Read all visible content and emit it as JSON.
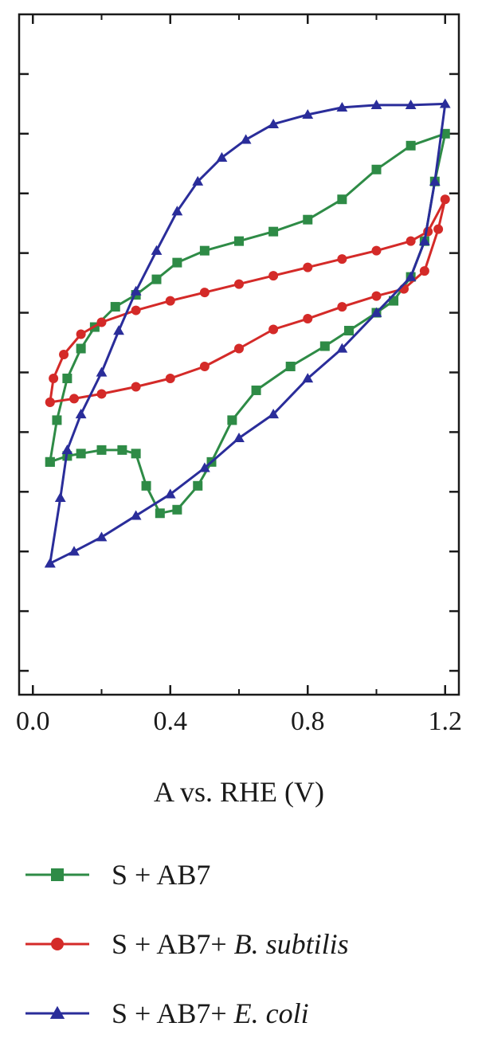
{
  "chart_data": {
    "type": "line",
    "title": "",
    "xlabel": "A vs. RHE (V)",
    "ylabel": "",
    "xlim": [
      -0.04,
      1.24
    ],
    "ylim": [
      -3.2,
      2.5
    ],
    "x_ticks": [
      0.0,
      0.4,
      0.8,
      1.2
    ],
    "x_tick_labels": [
      "0.0",
      "0.4",
      "0.8",
      "1.2"
    ],
    "y_ticks": [
      -3,
      -2.5,
      -2,
      -1.5,
      -1,
      -0.5,
      0,
      0.5,
      1,
      1.5,
      2
    ],
    "y_tick_labels_shown": false,
    "grid": false,
    "legend_position": "bottom",
    "series": [
      {
        "name": "S + AB7",
        "color": "#2e8b46",
        "marker": "square",
        "points": [
          [
            0.05,
            -1.25
          ],
          [
            0.07,
            -0.9
          ],
          [
            0.1,
            -0.55
          ],
          [
            0.14,
            -0.3
          ],
          [
            0.18,
            -0.12
          ],
          [
            0.24,
            0.05
          ],
          [
            0.3,
            0.15
          ],
          [
            0.36,
            0.28
          ],
          [
            0.42,
            0.42
          ],
          [
            0.5,
            0.52
          ],
          [
            0.6,
            0.6
          ],
          [
            0.7,
            0.68
          ],
          [
            0.8,
            0.78
          ],
          [
            0.9,
            0.95
          ],
          [
            1.0,
            1.2
          ],
          [
            1.1,
            1.4
          ],
          [
            1.2,
            1.5
          ],
          [
            1.17,
            1.1
          ],
          [
            1.14,
            0.6
          ],
          [
            1.1,
            0.3
          ],
          [
            1.05,
            0.1
          ],
          [
            1.0,
            0.0
          ],
          [
            0.92,
            -0.15
          ],
          [
            0.85,
            -0.28
          ],
          [
            0.75,
            -0.45
          ],
          [
            0.65,
            -0.65
          ],
          [
            0.58,
            -0.9
          ],
          [
            0.52,
            -1.25
          ],
          [
            0.48,
            -1.45
          ],
          [
            0.42,
            -1.65
          ],
          [
            0.37,
            -1.68
          ],
          [
            0.33,
            -1.45
          ],
          [
            0.3,
            -1.18
          ],
          [
            0.26,
            -1.15
          ],
          [
            0.2,
            -1.15
          ],
          [
            0.14,
            -1.18
          ],
          [
            0.1,
            -1.2
          ],
          [
            0.05,
            -1.25
          ]
        ]
      },
      {
        "name": "S + AB7+ B. subtilis",
        "color": "#d42a28",
        "marker": "circle",
        "points": [
          [
            0.05,
            -0.75
          ],
          [
            0.06,
            -0.55
          ],
          [
            0.09,
            -0.35
          ],
          [
            0.14,
            -0.18
          ],
          [
            0.2,
            -0.08
          ],
          [
            0.3,
            0.02
          ],
          [
            0.4,
            0.1
          ],
          [
            0.5,
            0.17
          ],
          [
            0.6,
            0.24
          ],
          [
            0.7,
            0.31
          ],
          [
            0.8,
            0.38
          ],
          [
            0.9,
            0.45
          ],
          [
            1.0,
            0.52
          ],
          [
            1.1,
            0.6
          ],
          [
            1.15,
            0.68
          ],
          [
            1.2,
            0.95
          ],
          [
            1.18,
            0.7
          ],
          [
            1.14,
            0.35
          ],
          [
            1.08,
            0.2
          ],
          [
            1.0,
            0.14
          ],
          [
            0.9,
            0.05
          ],
          [
            0.8,
            -0.05
          ],
          [
            0.7,
            -0.14
          ],
          [
            0.6,
            -0.3
          ],
          [
            0.5,
            -0.45
          ],
          [
            0.4,
            -0.55
          ],
          [
            0.3,
            -0.62
          ],
          [
            0.2,
            -0.68
          ],
          [
            0.12,
            -0.72
          ],
          [
            0.05,
            -0.75
          ]
        ]
      },
      {
        "name": "S + AB7+ E. coli",
        "color": "#2a2d9a",
        "marker": "triangle",
        "points": [
          [
            0.05,
            -2.1
          ],
          [
            0.08,
            -1.55
          ],
          [
            0.1,
            -1.15
          ],
          [
            0.14,
            -0.85
          ],
          [
            0.2,
            -0.5
          ],
          [
            0.25,
            -0.15
          ],
          [
            0.3,
            0.18
          ],
          [
            0.36,
            0.52
          ],
          [
            0.42,
            0.85
          ],
          [
            0.48,
            1.1
          ],
          [
            0.55,
            1.3
          ],
          [
            0.62,
            1.45
          ],
          [
            0.7,
            1.58
          ],
          [
            0.8,
            1.66
          ],
          [
            0.9,
            1.72
          ],
          [
            1.0,
            1.74
          ],
          [
            1.1,
            1.74
          ],
          [
            1.2,
            1.75
          ],
          [
            1.17,
            1.1
          ],
          [
            1.14,
            0.6
          ],
          [
            1.1,
            0.3
          ],
          [
            1.0,
            0.0
          ],
          [
            0.9,
            -0.3
          ],
          [
            0.8,
            -0.55
          ],
          [
            0.7,
            -0.85
          ],
          [
            0.6,
            -1.05
          ],
          [
            0.5,
            -1.3
          ],
          [
            0.4,
            -1.52
          ],
          [
            0.3,
            -1.7
          ],
          [
            0.2,
            -1.88
          ],
          [
            0.12,
            -2.0
          ],
          [
            0.05,
            -2.1
          ]
        ]
      }
    ]
  }
}
